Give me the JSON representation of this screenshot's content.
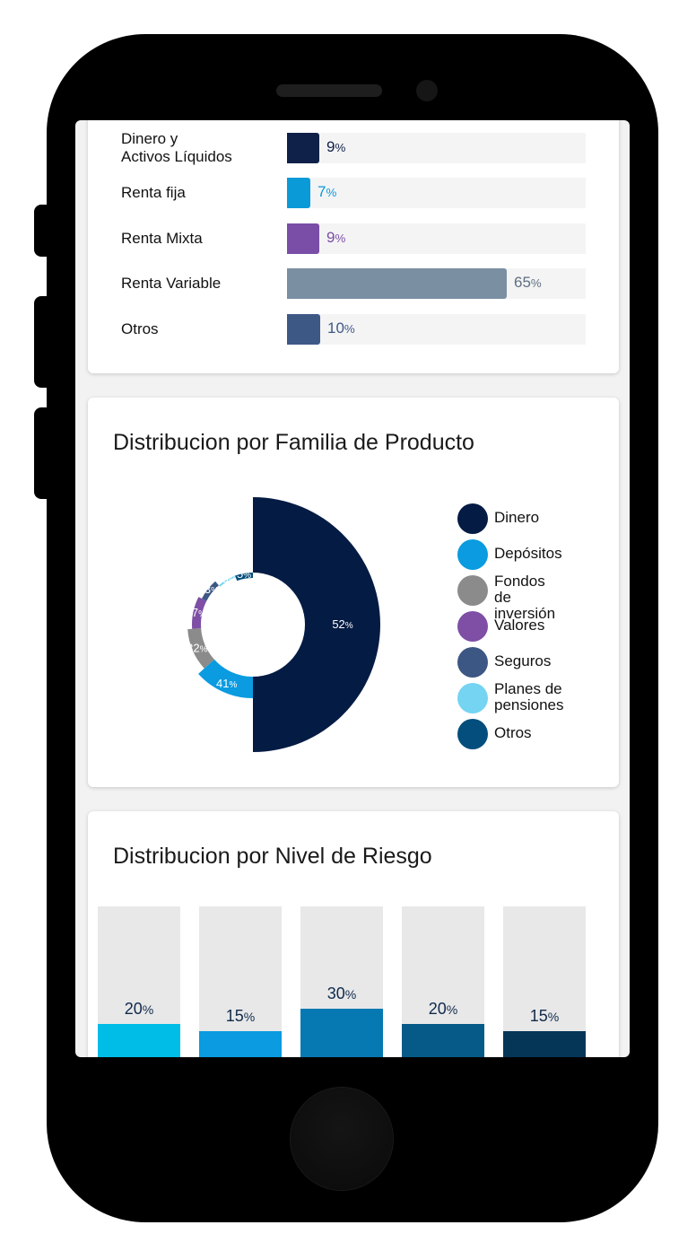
{
  "asset_bars": {
    "rows": [
      {
        "label": "Dinero y\nActivos Líquidos",
        "value": 9,
        "color": "#0f2148",
        "text_color": "#0f2148"
      },
      {
        "label": "Renta fija",
        "value": 7,
        "color": "#0a9ad8",
        "text_color": "#0a9ad8"
      },
      {
        "label": "Renta Mixta",
        "value": 9,
        "color": "#7a4ea6",
        "text_color": "#7a4ea6"
      },
      {
        "label": "Renta Variable",
        "value": 65,
        "color": "#7b8fa3",
        "text_color": "#5f6f80"
      },
      {
        "label": "Otros",
        "value": 10,
        "color": "#3e5886",
        "text_color": "#3e5886"
      }
    ],
    "unit": "%"
  },
  "family_card": {
    "title": "Distribucion por Familia de Producto",
    "chart_data": {
      "type": "pie",
      "slices": [
        {
          "name": "Dinero",
          "value": 52,
          "color": "#041b44"
        },
        {
          "name": "Depósitos",
          "value": 41,
          "color": "#0a9be0"
        },
        {
          "name": "Fondos de inversión",
          "value": 32,
          "color": "#8b8b8b"
        },
        {
          "name": "Valores",
          "value": 27,
          "color": "#7e4fa5"
        },
        {
          "name": "Seguros",
          "value": 23,
          "color": "#3d5784"
        },
        {
          "name": "Planes de pensiones",
          "value": 15,
          "color": "#74d4f2"
        },
        {
          "name": "Otros",
          "value": 5,
          "color": "#034e7c"
        }
      ],
      "unit": "%"
    },
    "legend": [
      {
        "label": "Dinero",
        "color": "#041b44"
      },
      {
        "label": "Depósitos",
        "color": "#0a9be0"
      },
      {
        "label": "Fondos\nde inversión",
        "color": "#8b8b8b"
      },
      {
        "label": "Valores",
        "color": "#7e4fa5"
      },
      {
        "label": "Seguros",
        "color": "#3d5784"
      },
      {
        "label": "Planes de\npensiones",
        "color": "#74d4f2"
      },
      {
        "label": "Otros",
        "color": "#034e7c"
      }
    ]
  },
  "risk_card": {
    "title": "Distribucion por Nivel de Riesgo",
    "chart_data": {
      "type": "bar",
      "values": [
        20,
        15,
        30,
        20,
        15
      ],
      "colors": [
        "#00bde8",
        "#0a9be0",
        "#0779b2",
        "#065a88",
        "#053658"
      ],
      "unit": "%",
      "ylim": [
        0,
        100
      ]
    }
  }
}
